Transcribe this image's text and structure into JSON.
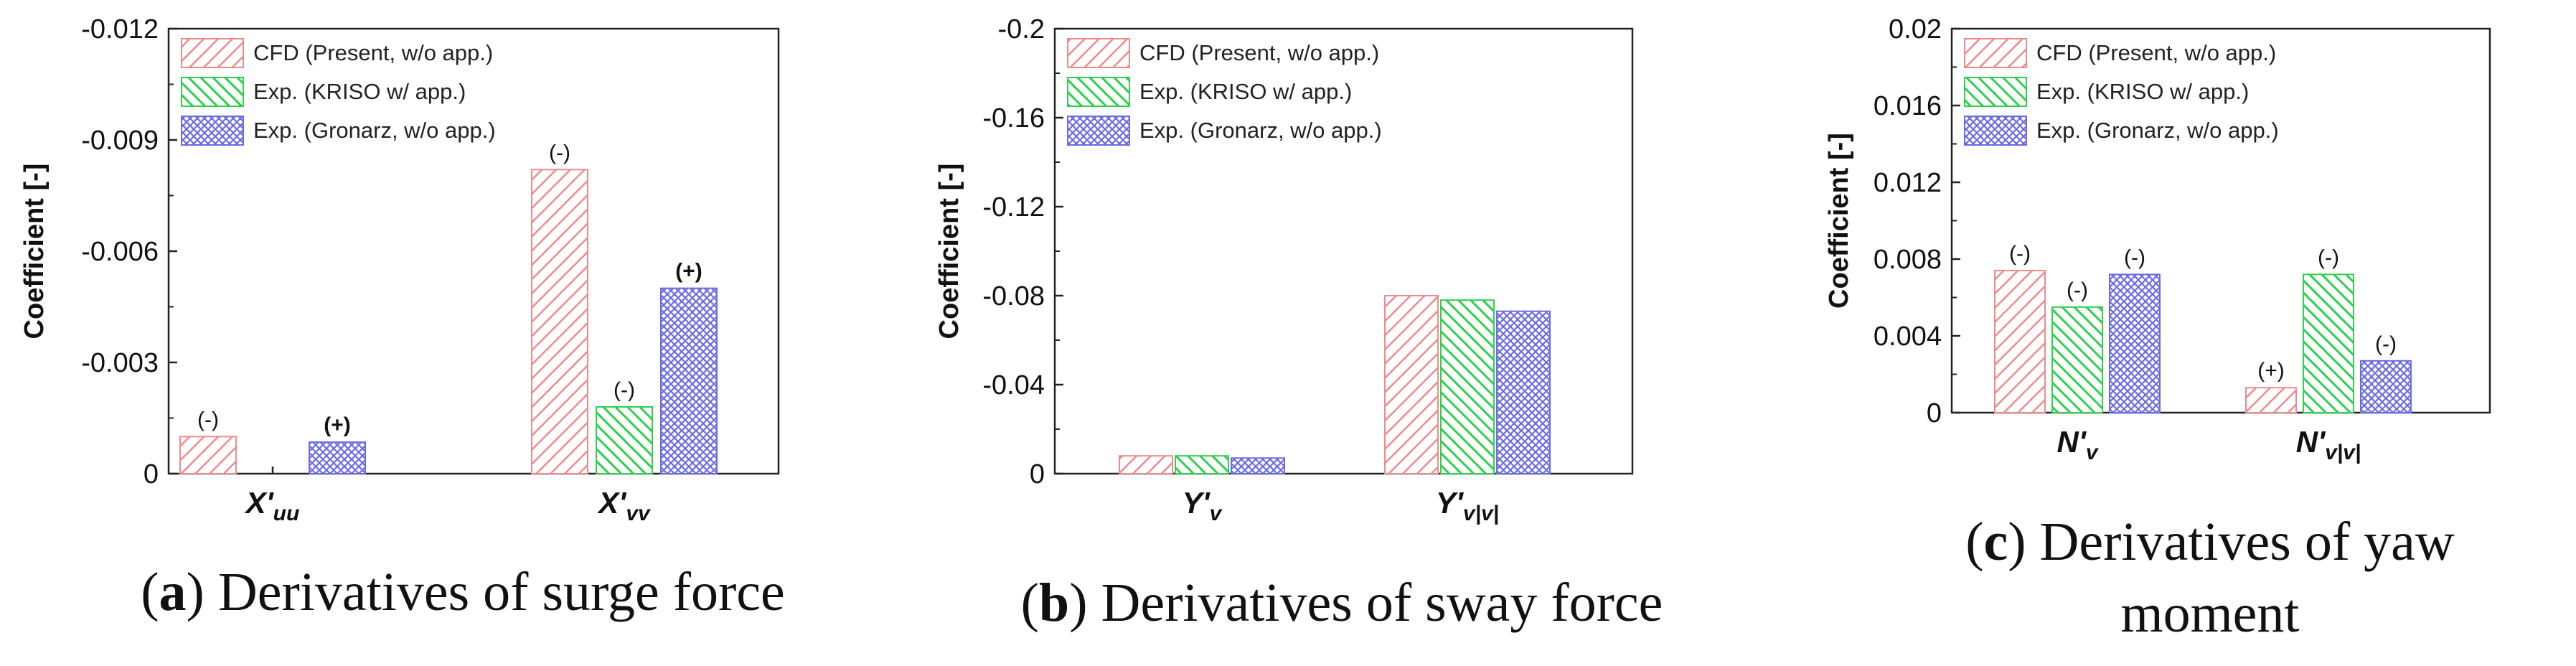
{
  "colors": {
    "cfd": "#f08a8a",
    "kriso": "#2fcf4f",
    "gronarz": "#6a6ae8"
  },
  "chart_data": [
    {
      "type": "bar",
      "panel_letter": "a",
      "caption_lines": [
        "Derivatives of surge force"
      ],
      "ylabel": "Coefficient [-]",
      "ylim": [
        0,
        -0.012
      ],
      "yticks": [
        0,
        -0.003,
        -0.006,
        -0.009,
        -0.012
      ],
      "ytick_labels": [
        "0",
        "-0.003",
        "-0.006",
        "-0.009",
        "-0.012"
      ],
      "categories": [
        {
          "base": "X'",
          "sub": "uu"
        },
        {
          "base": "X'",
          "sub": "vv"
        }
      ],
      "series": [
        {
          "name": "CFD (Present, w/o app.)",
          "values": [
            -0.001,
            -0.0082
          ],
          "signs": [
            "(-)",
            "(-)"
          ]
        },
        {
          "name": "Exp. (KRISO w/ app.)",
          "values": [
            null,
            -0.0018
          ],
          "signs": [
            null,
            "(-)"
          ]
        },
        {
          "name": "Exp. (Gronarz, w/o app.)",
          "values": [
            -0.00085,
            -0.005
          ],
          "signs": [
            "(+)",
            "(+)"
          ]
        }
      ],
      "legend_position": "top-left"
    },
    {
      "type": "bar",
      "panel_letter": "b",
      "caption_lines": [
        "Derivatives of sway force"
      ],
      "ylabel": "Coefficient [-]",
      "ylim": [
        0,
        -0.2
      ],
      "yticks": [
        0,
        -0.04,
        -0.08,
        -0.12,
        -0.16,
        -0.2
      ],
      "ytick_labels": [
        "0",
        "-0.04",
        "-0.08",
        "-0.12",
        "-0.16",
        "-0.2"
      ],
      "categories": [
        {
          "base": "Y'",
          "sub": "v"
        },
        {
          "base": "Y'",
          "sub": "v|v|"
        }
      ],
      "series": [
        {
          "name": "CFD (Present, w/o app.)",
          "values": [
            -0.008,
            -0.08
          ],
          "signs": [
            null,
            null
          ]
        },
        {
          "name": "Exp. (KRISO w/ app.)",
          "values": [
            -0.008,
            -0.078
          ],
          "signs": [
            null,
            null
          ]
        },
        {
          "name": "Exp. (Gronarz, w/o app.)",
          "values": [
            -0.007,
            -0.073
          ],
          "signs": [
            null,
            null
          ]
        }
      ],
      "legend_position": "top-left"
    },
    {
      "type": "bar",
      "panel_letter": "c",
      "caption_lines": [
        "Derivatives of yaw",
        "moment"
      ],
      "ylabel": "Coefficient [-]",
      "ylim": [
        0,
        0.02
      ],
      "yticks": [
        0,
        0.004,
        0.008,
        0.012,
        0.016,
        0.02
      ],
      "ytick_labels": [
        "0",
        "0.004",
        "0.008",
        "0.012",
        "0.016",
        "0.02"
      ],
      "categories": [
        {
          "base": "N'",
          "sub": "v"
        },
        {
          "base": "N'",
          "sub": "v|v|"
        }
      ],
      "series": [
        {
          "name": "CFD (Present, w/o app.)",
          "values": [
            0.0074,
            0.0013
          ],
          "signs": [
            "(-)",
            "(+)"
          ]
        },
        {
          "name": "Exp. (KRISO w/ app.)",
          "values": [
            0.0055,
            0.0072
          ],
          "signs": [
            "(-)",
            "(-)"
          ]
        },
        {
          "name": "Exp. (Gronarz, w/o app.)",
          "values": [
            0.0072,
            0.0027
          ],
          "signs": [
            "(-)",
            "(-)"
          ]
        }
      ],
      "legend_position": "top-left"
    }
  ]
}
